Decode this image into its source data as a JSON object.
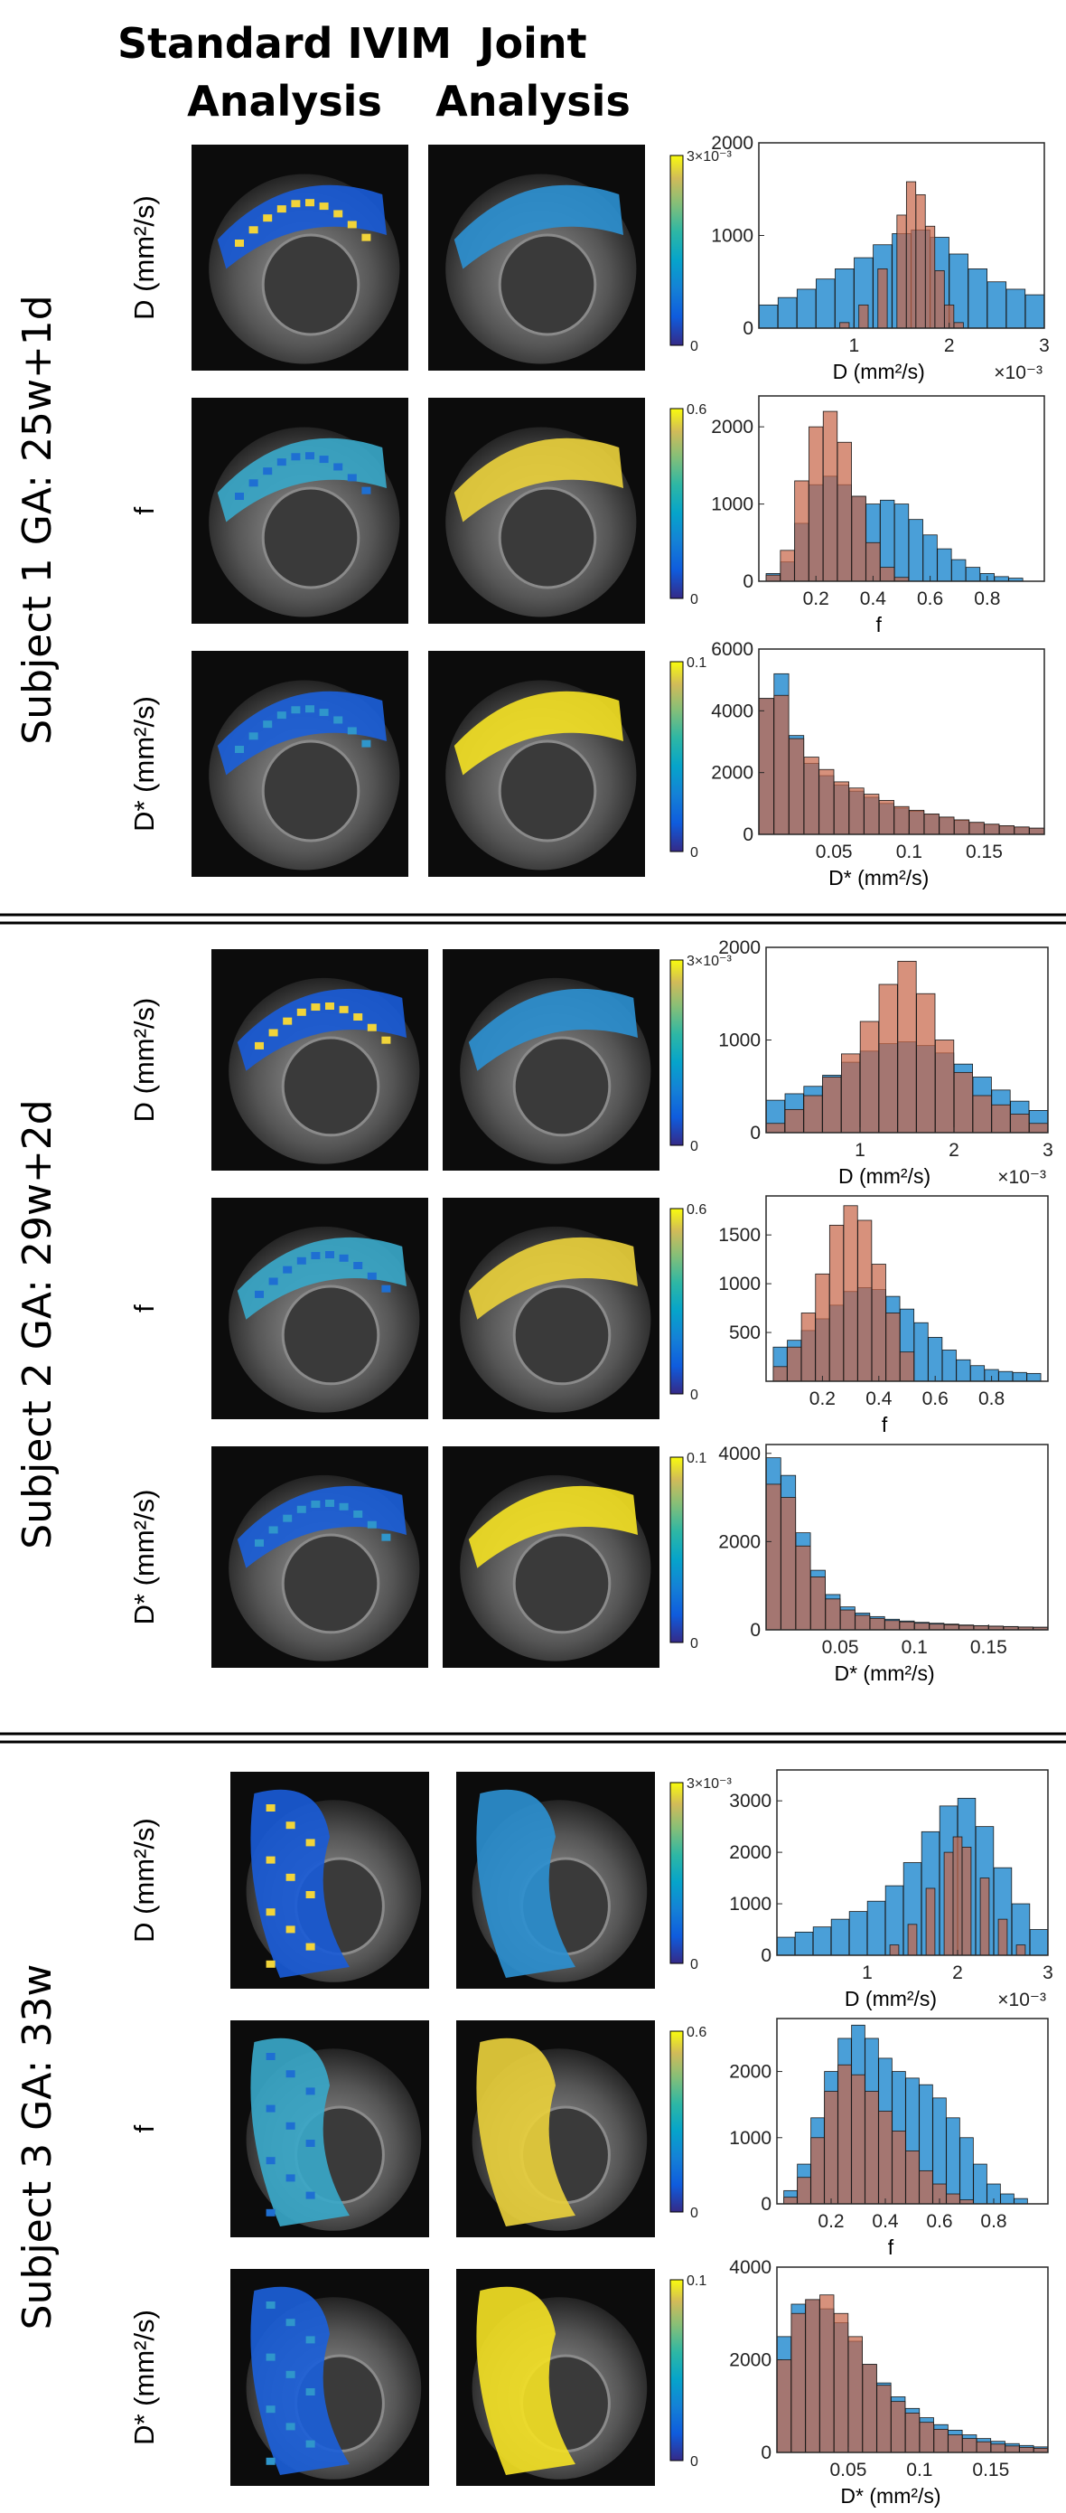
{
  "columns": {
    "standard": [
      "Standard IVIM",
      "Analysis"
    ],
    "joint": [
      "Joint",
      "Analysis"
    ]
  },
  "colors": {
    "standard_hist": "#4a9fd8",
    "joint_hist": "#c8664a",
    "overlap_hist": "#8c5a4e",
    "separator": "#000000"
  },
  "subjects": [
    {
      "label": "Subject 1 GA: 25w+1d",
      "rows": [
        {
          "label": "D (mm²/s)",
          "colorbar": {
            "max": "3×10⁻³",
            "min": "0"
          }
        },
        {
          "label": "f",
          "colorbar": {
            "max": "0.6",
            "min": "0"
          }
        },
        {
          "label": "D* (mm²/s)",
          "colorbar": {
            "max": "0.1",
            "min": "0"
          }
        }
      ]
    },
    {
      "label": "Subject 2 GA: 29w+2d",
      "rows": [
        {
          "label": "D (mm²/s)",
          "colorbar": {
            "max": "3×10⁻³",
            "min": "0"
          }
        },
        {
          "label": "f",
          "colorbar": {
            "max": "0.6",
            "min": "0"
          }
        },
        {
          "label": "D* (mm²/s)",
          "colorbar": {
            "max": "0.1",
            "min": "0"
          }
        }
      ]
    },
    {
      "label": "Subject 3 GA: 33w",
      "rows": [
        {
          "label": "D (mm²/s)",
          "colorbar": {
            "max": "3×10⁻³",
            "min": "0"
          }
        },
        {
          "label": "f",
          "colorbar": {
            "max": "0.6",
            "min": "0"
          }
        },
        {
          "label": "D* (mm²/s)",
          "colorbar": {
            "max": "0.1",
            "min": "0"
          }
        }
      ]
    }
  ],
  "chart_data": [
    {
      "id": "s1_D",
      "type": "bar",
      "xlabel": "D (mm²/s)",
      "xscale_label": "×10⁻³",
      "xlim": [
        0,
        3
      ],
      "xticks": [
        1,
        2,
        3
      ],
      "ylim": [
        0,
        2000
      ],
      "yticks": [
        0,
        1000,
        2000
      ],
      "series": [
        {
          "name": "Standard IVIM",
          "x": [
            0.1,
            0.3,
            0.5,
            0.7,
            0.9,
            1.1,
            1.3,
            1.5,
            1.7,
            1.9,
            2.1,
            2.3,
            2.5,
            2.7,
            2.9
          ],
          "values": [
            250,
            330,
            420,
            530,
            640,
            760,
            900,
            1020,
            1060,
            980,
            800,
            640,
            500,
            420,
            360
          ]
        },
        {
          "name": "Joint",
          "x": [
            0.9,
            1.1,
            1.3,
            1.5,
            1.6,
            1.7,
            1.8,
            1.9,
            2.0,
            2.1
          ],
          "values": [
            60,
            250,
            640,
            1220,
            1580,
            1440,
            1100,
            620,
            250,
            60
          ]
        }
      ]
    },
    {
      "id": "s1_f",
      "type": "bar",
      "xlabel": "f",
      "xlim": [
        0,
        1
      ],
      "xticks": [
        0.2,
        0.4,
        0.6,
        0.8
      ],
      "ylim": [
        0,
        2400
      ],
      "yticks": [
        0,
        1000,
        2000
      ],
      "series": [
        {
          "name": "Standard IVIM",
          "x": [
            0.05,
            0.1,
            0.15,
            0.2,
            0.25,
            0.3,
            0.35,
            0.4,
            0.45,
            0.5,
            0.55,
            0.6,
            0.65,
            0.7,
            0.75,
            0.8,
            0.85,
            0.9
          ],
          "values": [
            100,
            250,
            750,
            1250,
            1360,
            1250,
            1100,
            1000,
            1050,
            1000,
            800,
            600,
            420,
            280,
            180,
            100,
            60,
            40
          ]
        },
        {
          "name": "Joint",
          "x": [
            0.05,
            0.1,
            0.15,
            0.2,
            0.25,
            0.3,
            0.35,
            0.4,
            0.45,
            0.5
          ],
          "values": [
            80,
            400,
            1300,
            2000,
            2200,
            1800,
            1100,
            500,
            180,
            50
          ]
        }
      ]
    },
    {
      "id": "s1_Dstar",
      "type": "bar",
      "xlabel": "D* (mm²/s)",
      "xlim": [
        0,
        0.19
      ],
      "xticks": [
        0.05,
        0.1,
        0.15
      ],
      "ylim": [
        0,
        6000
      ],
      "yticks": [
        0,
        2000,
        4000,
        6000
      ],
      "series": [
        {
          "name": "Standard IVIM",
          "x": [
            0.005,
            0.015,
            0.025,
            0.035,
            0.045,
            0.055,
            0.065,
            0.075,
            0.085,
            0.095,
            0.105,
            0.115,
            0.125,
            0.135,
            0.145,
            0.155,
            0.165,
            0.175,
            0.185
          ],
          "values": [
            4400,
            5200,
            3200,
            2300,
            1900,
            1600,
            1400,
            1200,
            1000,
            850,
            750,
            650,
            550,
            450,
            380,
            320,
            270,
            230,
            200
          ]
        },
        {
          "name": "Joint",
          "x": [
            0.005,
            0.015,
            0.025,
            0.035,
            0.045,
            0.055,
            0.065,
            0.075,
            0.085,
            0.095,
            0.105,
            0.115,
            0.125,
            0.135,
            0.145,
            0.155,
            0.165,
            0.175,
            0.185
          ],
          "values": [
            4400,
            4500,
            3100,
            2500,
            2100,
            1700,
            1500,
            1300,
            1100,
            900,
            780,
            660,
            560,
            470,
            390,
            330,
            280,
            240,
            200
          ]
        }
      ]
    },
    {
      "id": "s2_D",
      "type": "bar",
      "xlabel": "D (mm²/s)",
      "xscale_label": "×10⁻³",
      "xlim": [
        0,
        3
      ],
      "xticks": [
        1,
        2,
        3
      ],
      "ylim": [
        0,
        2000
      ],
      "yticks": [
        0,
        1000,
        2000
      ],
      "series": [
        {
          "name": "Standard IVIM",
          "x": [
            0.1,
            0.3,
            0.5,
            0.7,
            0.9,
            1.1,
            1.3,
            1.5,
            1.7,
            1.9,
            2.1,
            2.3,
            2.5,
            2.7,
            2.9
          ],
          "values": [
            350,
            420,
            500,
            620,
            760,
            880,
            960,
            980,
            940,
            860,
            740,
            600,
            460,
            340,
            240
          ]
        },
        {
          "name": "Joint",
          "x": [
            0.1,
            0.3,
            0.5,
            0.7,
            0.9,
            1.1,
            1.3,
            1.5,
            1.7,
            1.9,
            2.1,
            2.3,
            2.5,
            2.7,
            2.9
          ],
          "values": [
            100,
            250,
            400,
            600,
            850,
            1200,
            1600,
            1850,
            1500,
            1000,
            650,
            400,
            300,
            200,
            100
          ]
        }
      ]
    },
    {
      "id": "s2_f",
      "type": "bar",
      "xlabel": "f",
      "xlim": [
        0,
        1
      ],
      "xticks": [
        0.2,
        0.4,
        0.6,
        0.8
      ],
      "yticks": [
        500,
        1000,
        1500
      ],
      "ylim": [
        0,
        1900
      ],
      "series": [
        {
          "name": "Standard IVIM",
          "x": [
            0.05,
            0.1,
            0.15,
            0.2,
            0.25,
            0.3,
            0.35,
            0.4,
            0.45,
            0.5,
            0.55,
            0.6,
            0.65,
            0.7,
            0.75,
            0.8,
            0.85,
            0.9,
            0.95
          ],
          "values": [
            350,
            420,
            520,
            640,
            780,
            920,
            960,
            940,
            870,
            740,
            600,
            450,
            320,
            220,
            160,
            120,
            100,
            90,
            80
          ]
        },
        {
          "name": "Joint",
          "x": [
            0.05,
            0.1,
            0.15,
            0.2,
            0.25,
            0.3,
            0.35,
            0.4,
            0.45,
            0.5
          ],
          "values": [
            150,
            350,
            700,
            1100,
            1600,
            1800,
            1650,
            1200,
            700,
            300
          ]
        }
      ]
    },
    {
      "id": "s2_Dstar",
      "type": "bar",
      "xlabel": "D* (mm²/s)",
      "xlim": [
        0,
        0.19
      ],
      "xticks": [
        0.05,
        0.1,
        0.15
      ],
      "ylim": [
        0,
        4200
      ],
      "yticks": [
        0,
        2000,
        4000
      ],
      "series": [
        {
          "name": "Standard IVIM",
          "x": [
            0.005,
            0.015,
            0.025,
            0.035,
            0.045,
            0.055,
            0.065,
            0.075,
            0.085,
            0.095,
            0.105,
            0.115,
            0.125,
            0.135,
            0.145,
            0.155,
            0.165,
            0.175,
            0.185
          ],
          "values": [
            3900,
            3500,
            2200,
            1350,
            800,
            520,
            380,
            300,
            240,
            200,
            170,
            150,
            130,
            110,
            95,
            85,
            75,
            65,
            60
          ]
        },
        {
          "name": "Joint",
          "x": [
            0.005,
            0.015,
            0.025,
            0.035,
            0.045,
            0.055,
            0.065,
            0.075,
            0.085,
            0.095,
            0.105,
            0.115,
            0.125,
            0.135,
            0.145,
            0.155,
            0.165,
            0.175,
            0.185
          ],
          "values": [
            3300,
            3000,
            1900,
            1200,
            700,
            450,
            330,
            260,
            210,
            180,
            150,
            130,
            115,
            100,
            90,
            80,
            70,
            62,
            56
          ]
        }
      ]
    },
    {
      "id": "s3_D",
      "type": "bar",
      "xlabel": "D (mm²/s)",
      "xscale_label": "×10⁻³",
      "xlim": [
        0,
        3
      ],
      "xticks": [
        1,
        2,
        3
      ],
      "ylim": [
        0,
        3600
      ],
      "yticks": [
        0,
        1000,
        2000,
        3000
      ],
      "series": [
        {
          "name": "Standard IVIM",
          "x": [
            0.1,
            0.3,
            0.5,
            0.7,
            0.9,
            1.1,
            1.3,
            1.5,
            1.7,
            1.9,
            2.1,
            2.3,
            2.5,
            2.7,
            2.9
          ],
          "values": [
            350,
            450,
            550,
            700,
            850,
            1050,
            1350,
            1800,
            2400,
            2900,
            3050,
            2500,
            1700,
            1000,
            500
          ]
        },
        {
          "name": "Joint",
          "x": [
            1.3,
            1.5,
            1.7,
            1.9,
            2.0,
            2.1,
            2.3,
            2.5,
            2.7
          ],
          "values": [
            200,
            600,
            1300,
            2000,
            2300,
            2100,
            1500,
            700,
            200
          ]
        }
      ]
    },
    {
      "id": "s3_f",
      "type": "bar",
      "xlabel": "f",
      "xlim": [
        0,
        1
      ],
      "xticks": [
        0.2,
        0.4,
        0.6,
        0.8
      ],
      "ylim": [
        0,
        2800
      ],
      "yticks": [
        0,
        1000,
        2000
      ],
      "series": [
        {
          "name": "Standard IVIM",
          "x": [
            0.05,
            0.1,
            0.15,
            0.2,
            0.25,
            0.3,
            0.35,
            0.4,
            0.45,
            0.5,
            0.55,
            0.6,
            0.65,
            0.7,
            0.75,
            0.8,
            0.85,
            0.9
          ],
          "values": [
            200,
            600,
            1300,
            2000,
            2500,
            2700,
            2500,
            2200,
            2000,
            1900,
            1800,
            1600,
            1300,
            1000,
            600,
            300,
            150,
            80
          ]
        },
        {
          "name": "Joint",
          "x": [
            0.05,
            0.1,
            0.15,
            0.2,
            0.25,
            0.3,
            0.35,
            0.4,
            0.45,
            0.5,
            0.55,
            0.6,
            0.65,
            0.7
          ],
          "values": [
            100,
            400,
            1000,
            1700,
            2100,
            1950,
            1700,
            1400,
            1100,
            800,
            500,
            300,
            150,
            60
          ]
        }
      ]
    },
    {
      "id": "s3_Dstar",
      "type": "bar",
      "xlabel": "D* (mm²/s)",
      "xlim": [
        0,
        0.19
      ],
      "xticks": [
        0.05,
        0.1,
        0.15
      ],
      "ylim": [
        0,
        4000
      ],
      "yticks": [
        0,
        2000,
        4000
      ],
      "series": [
        {
          "name": "Standard IVIM",
          "x": [
            0.005,
            0.015,
            0.025,
            0.035,
            0.045,
            0.055,
            0.065,
            0.075,
            0.085,
            0.095,
            0.105,
            0.115,
            0.125,
            0.135,
            0.145,
            0.155,
            0.165,
            0.175,
            0.185
          ],
          "values": [
            2500,
            3200,
            3300,
            3100,
            2800,
            2400,
            1900,
            1500,
            1200,
            950,
            750,
            600,
            480,
            380,
            300,
            240,
            190,
            150,
            120
          ]
        },
        {
          "name": "Joint",
          "x": [
            0.005,
            0.015,
            0.025,
            0.035,
            0.045,
            0.055,
            0.065,
            0.075,
            0.085,
            0.095,
            0.105,
            0.115,
            0.125,
            0.135,
            0.145,
            0.155,
            0.165,
            0.175,
            0.185
          ],
          "values": [
            2000,
            3000,
            3300,
            3400,
            3000,
            2500,
            1900,
            1450,
            1100,
            850,
            650,
            500,
            380,
            300,
            230,
            180,
            140,
            110,
            90
          ]
        }
      ]
    }
  ]
}
